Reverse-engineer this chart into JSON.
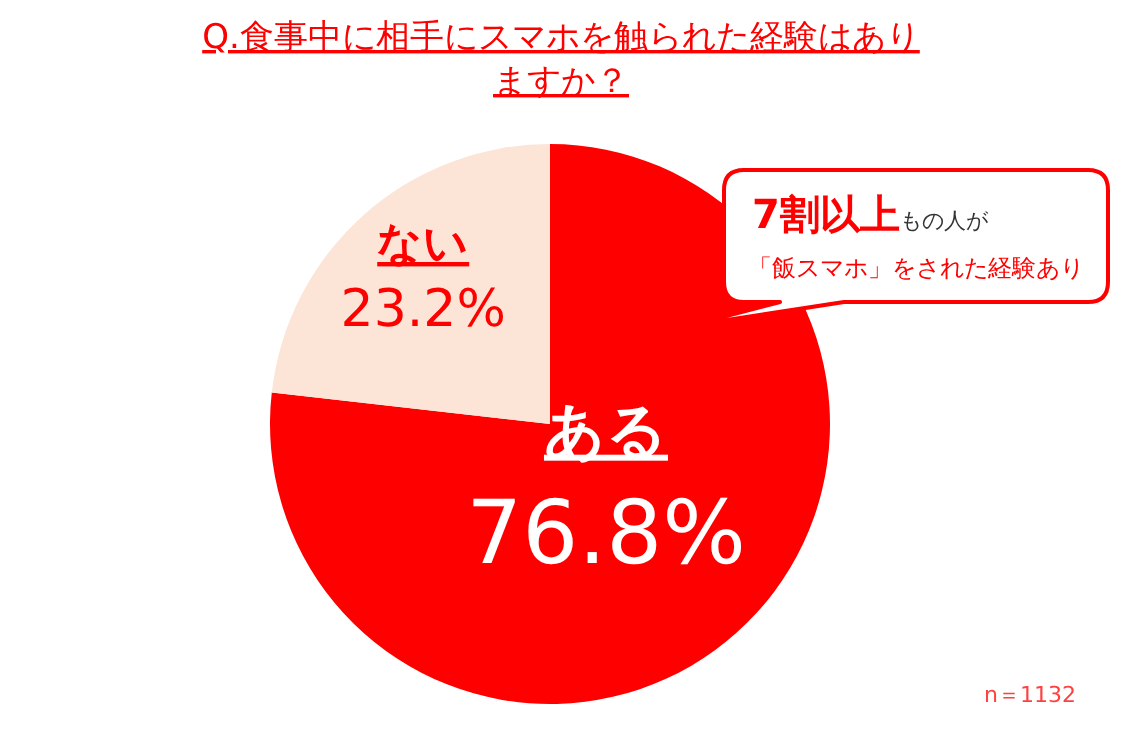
{
  "chart_data": {
    "type": "pie",
    "title": "Q.食事中に相手にスマホを触られた経験はありますか？",
    "categories": [
      "ある",
      "ない"
    ],
    "values": [
      76.8,
      23.2
    ],
    "colors": [
      "#ff0000",
      "#fce4d6"
    ],
    "value_labels": [
      "76.8%",
      "23.2%"
    ],
    "annotations": [
      "7割以上もの人が",
      "「飯スマホ」をされた経験あり",
      "n＝1132"
    ]
  }
}
